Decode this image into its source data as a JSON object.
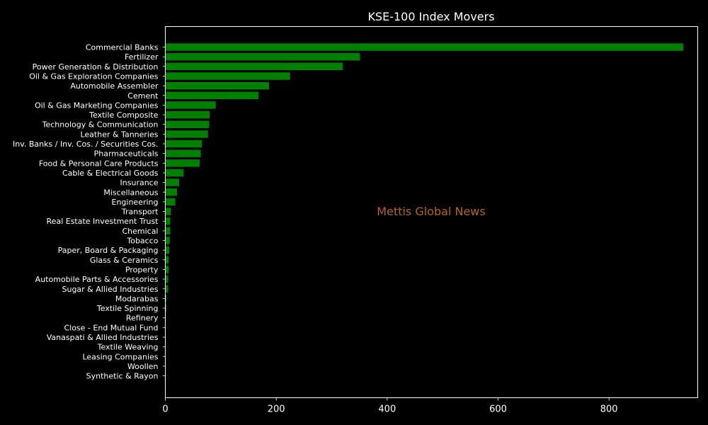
{
  "chart_data": {
    "type": "bar",
    "orientation": "horizontal",
    "title": "KSE-100 Index Movers",
    "xlabel": "",
    "ylabel": "",
    "xlim": [
      0,
      960
    ],
    "x_ticks": [
      0,
      200,
      400,
      600,
      800
    ],
    "grid": false,
    "legend": "none",
    "watermark": "Mettis Global News",
    "categories": [
      "Commercial Banks",
      "Fertilizer",
      "Power Generation & Distribution",
      "Oil & Gas Exploration Companies",
      "Automobile Assembler",
      "Cement",
      "Oil & Gas Marketing Companies",
      "Textile Composite",
      "Technology & Communication",
      "Leather & Tanneries",
      "Inv. Banks / Inv. Cos. / Securities Cos.",
      "Pharmaceuticals",
      "Food & Personal Care Products",
      "Cable & Electrical Goods",
      "Insurance",
      "Miscellaneous",
      "Engineering",
      "Transport",
      "Real Estate Investment Trust",
      "Chemical",
      "Tobacco",
      "Paper, Board & Packaging",
      "Glass & Ceramics",
      "Property",
      "Automobile Parts & Accessories",
      "Sugar & Allied Industries",
      "Modarabas",
      "Textile Spinning",
      "Refinery",
      "Close - End Mutual Fund",
      "Vanaspati & Allied Industries",
      "Textile Weaving",
      "Leasing Companies",
      "Woollen",
      "Synthetic & Rayon"
    ],
    "values": [
      934,
      351,
      320,
      225,
      187,
      168,
      91,
      80,
      79,
      77,
      66,
      64,
      62,
      33,
      25,
      21,
      18,
      10,
      9,
      9,
      8,
      7,
      6,
      6,
      5,
      5,
      2,
      2,
      1,
      0,
      0,
      0,
      0,
      0,
      0
    ]
  },
  "colors": {
    "background": "#000000",
    "bar": "#008000",
    "axis": "#ffffff",
    "text": "#ffffff",
    "watermark": "#b5651d"
  }
}
